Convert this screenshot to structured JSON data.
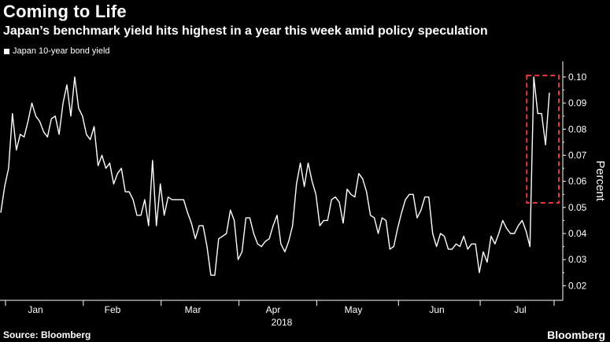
{
  "title": "Coming to Life",
  "subtitle": "Japan’s benchmark yield hits highest in a year this week amid policy speculation",
  "source": "Source: Bloomberg",
  "brand": "Bloomberg",
  "colors": {
    "background": "#000000",
    "line": "#ffffff",
    "highlight": "#e03a3e"
  },
  "chart_data": {
    "type": "line",
    "title": "Coming to Life",
    "subtitle": "Japan’s benchmark yield hits highest in a year this week amid policy speculation",
    "xlabel": "2018",
    "ylabel": "Percent",
    "ylim": [
      0.015,
      0.106
    ],
    "y_ticks": [
      0.1,
      0.09,
      0.08,
      0.07,
      0.06,
      0.05,
      0.04,
      0.03,
      0.02
    ],
    "x_ticks": [
      "Jan",
      "Feb",
      "Mar",
      "Apr",
      "May",
      "Jun",
      "Jul"
    ],
    "grid": false,
    "y_axis_side": "right",
    "legend_position": "top-left",
    "highlight": {
      "style": "dashed box",
      "color": "#e03a3e",
      "from_point": 137,
      "to_point": 141
    },
    "series": [
      {
        "name": "Japan 10-year bond yield",
        "values": [
          0.048,
          0.058,
          0.065,
          0.086,
          0.072,
          0.078,
          0.077,
          0.083,
          0.09,
          0.085,
          0.083,
          0.079,
          0.077,
          0.084,
          0.085,
          0.078,
          0.09,
          0.097,
          0.085,
          0.1,
          0.088,
          0.085,
          0.078,
          0.076,
          0.081,
          0.066,
          0.07,
          0.065,
          0.067,
          0.059,
          0.063,
          0.065,
          0.056,
          0.056,
          0.053,
          0.047,
          0.047,
          0.053,
          0.043,
          0.068,
          0.043,
          0.059,
          0.047,
          0.054,
          0.053,
          0.053,
          0.053,
          0.053,
          0.048,
          0.044,
          0.038,
          0.043,
          0.043,
          0.035,
          0.024,
          0.024,
          0.038,
          0.039,
          0.04,
          0.049,
          0.045,
          0.03,
          0.033,
          0.046,
          0.046,
          0.04,
          0.036,
          0.035,
          0.037,
          0.038,
          0.043,
          0.047,
          0.036,
          0.033,
          0.037,
          0.043,
          0.059,
          0.067,
          0.058,
          0.067,
          0.06,
          0.055,
          0.043,
          0.045,
          0.045,
          0.053,
          0.054,
          0.052,
          0.044,
          0.057,
          0.055,
          0.054,
          0.063,
          0.061,
          0.056,
          0.047,
          0.046,
          0.04,
          0.046,
          0.045,
          0.034,
          0.035,
          0.042,
          0.048,
          0.053,
          0.055,
          0.055,
          0.046,
          0.049,
          0.054,
          0.054,
          0.04,
          0.035,
          0.04,
          0.039,
          0.034,
          0.034,
          0.036,
          0.035,
          0.039,
          0.034,
          0.036,
          0.036,
          0.025,
          0.033,
          0.029,
          0.039,
          0.036,
          0.04,
          0.045,
          0.042,
          0.04,
          0.04,
          0.043,
          0.045,
          0.041,
          0.035,
          0.1,
          0.086,
          0.086,
          0.074,
          0.094
        ]
      }
    ]
  }
}
